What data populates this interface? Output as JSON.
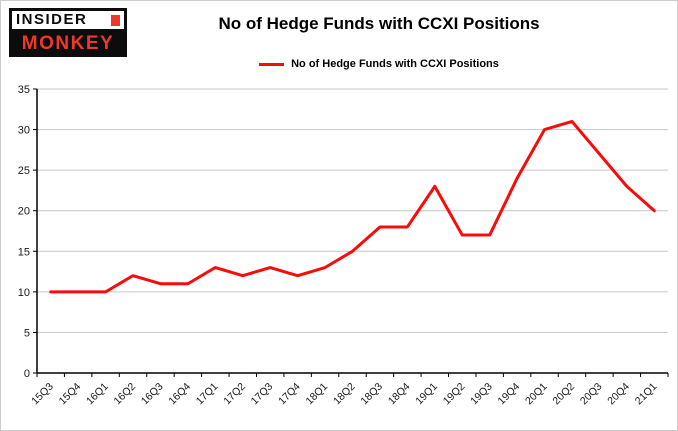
{
  "logo": {
    "line1": "INSIDER",
    "line2": "MONKEY"
  },
  "chart_data": {
    "type": "line",
    "title": "No of Hedge Funds with CCXI Positions",
    "legend": "No of Hedge Funds with CCXI Positions",
    "categories": [
      "15Q3",
      "15Q4",
      "16Q1",
      "16Q2",
      "16Q3",
      "16Q4",
      "17Q1",
      "17Q2",
      "17Q3",
      "17Q4",
      "18Q1",
      "18Q2",
      "18Q3",
      "18Q4",
      "19Q1",
      "19Q2",
      "19Q3",
      "19Q4",
      "20Q1",
      "20Q2",
      "20Q3",
      "20Q4",
      "21Q1"
    ],
    "values": [
      10,
      10,
      10,
      12,
      11,
      11,
      13,
      12,
      13,
      12,
      13,
      15,
      18,
      18,
      23,
      17,
      17,
      24,
      30,
      31,
      27,
      23,
      20
    ],
    "ylim": [
      0,
      35
    ],
    "yticks": [
      0,
      5,
      10,
      15,
      20,
      25,
      30,
      35
    ],
    "grid": true,
    "legend_position": "top",
    "line_color": "#fa0a0a",
    "colors": {
      "gridline": "#c6c6c6",
      "axis": "#000000",
      "tick_label": "#1a1a1a",
      "logo_red": "#ef372e"
    }
  }
}
